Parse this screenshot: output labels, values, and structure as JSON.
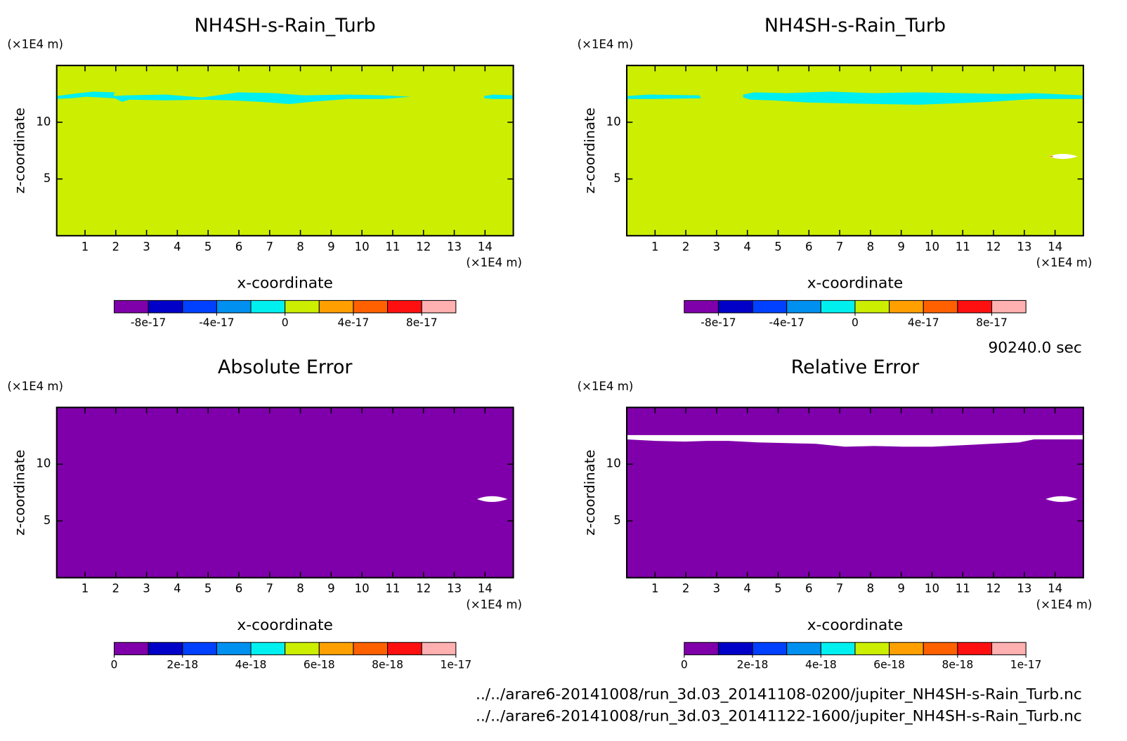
{
  "chart_data": [
    {
      "type": "contour",
      "title": "NH4SH-s-Rain_Turb",
      "x_label": "x-coordinate",
      "y_label": "z-coordinate",
      "x_unit": "(×1E4 m)",
      "y_unit": "(×1E4 m)",
      "xlim": [
        0.08,
        14.92
      ],
      "ylim": [
        0,
        15
      ],
      "xticks": [
        1,
        2,
        3,
        4,
        5,
        6,
        7,
        8,
        9,
        10,
        11,
        12,
        13,
        14
      ],
      "yticks": [
        5,
        10
      ],
      "field_color": "#ccee00",
      "colorbar": {
        "colors": [
          "#7f00aa",
          "#0000c8",
          "#0040ff",
          "#0090f0",
          "#00f0f0",
          "#ccee00",
          "#ffa000",
          "#ff6000",
          "#ff1010",
          "#ffb0b0"
        ],
        "lim": [
          -1e-16,
          1e-16
        ],
        "ticks": [
          -8e-17,
          -4e-17,
          0,
          4e-17,
          8e-17
        ]
      }
    },
    {
      "type": "contour",
      "title": "NH4SH-s-Rain_Turb",
      "x_label": "x-coordinate",
      "y_label": "z-coordinate",
      "x_unit": "(×1E4 m)",
      "y_unit": "(×1E4 m)",
      "xlim": [
        0.08,
        14.92
      ],
      "ylim": [
        0,
        15
      ],
      "xticks": [
        1,
        2,
        3,
        4,
        5,
        6,
        7,
        8,
        9,
        10,
        11,
        12,
        13,
        14
      ],
      "yticks": [
        5,
        10
      ],
      "field_color": "#ccee00",
      "colorbar": {
        "colors": [
          "#7f00aa",
          "#0000c8",
          "#0040ff",
          "#0090f0",
          "#00f0f0",
          "#ccee00",
          "#ffa000",
          "#ff6000",
          "#ff1010",
          "#ffb0b0"
        ],
        "lim": [
          -1e-16,
          1e-16
        ],
        "ticks": [
          -8e-17,
          -4e-17,
          0,
          4e-17,
          8e-17
        ]
      }
    },
    {
      "type": "contour",
      "title": "Absolute Error",
      "x_label": "x-coordinate",
      "y_label": "z-coordinate",
      "x_unit": "(×1E4 m)",
      "y_unit": "(×1E4 m)",
      "xlim": [
        0.08,
        14.92
      ],
      "ylim": [
        0,
        15
      ],
      "xticks": [
        1,
        2,
        3,
        4,
        5,
        6,
        7,
        8,
        9,
        10,
        11,
        12,
        13,
        14
      ],
      "yticks": [
        5,
        10
      ],
      "field_color": "#7f00aa",
      "colorbar": {
        "colors": [
          "#7f00aa",
          "#0000c8",
          "#0040ff",
          "#0090f0",
          "#00f0f0",
          "#ccee00",
          "#ffa000",
          "#ff6000",
          "#ff1010",
          "#ffb0b0"
        ],
        "lim": [
          0,
          1e-17
        ],
        "ticks": [
          0,
          2e-18,
          4e-18,
          6e-18,
          8e-18,
          1e-17
        ]
      }
    },
    {
      "type": "contour",
      "title": "Relative Error",
      "x_label": "x-coordinate",
      "y_label": "z-coordinate",
      "x_unit": "(×1E4 m)",
      "y_unit": "(×1E4 m)",
      "xlim": [
        0.08,
        14.92
      ],
      "ylim": [
        0,
        15
      ],
      "xticks": [
        1,
        2,
        3,
        4,
        5,
        6,
        7,
        8,
        9,
        10,
        11,
        12,
        13,
        14
      ],
      "yticks": [
        5,
        10
      ],
      "field_color": "#7f00aa",
      "colorbar": {
        "colors": [
          "#7f00aa",
          "#0000c8",
          "#0040ff",
          "#0090f0",
          "#00f0f0",
          "#ccee00",
          "#ffa000",
          "#ff6000",
          "#ff1010",
          "#ffb0b0"
        ],
        "lim": [
          0,
          1e-17
        ],
        "ticks": [
          0,
          2e-18,
          4e-18,
          6e-18,
          8e-18,
          1e-17
        ]
      }
    }
  ],
  "time": "90240.0 sec",
  "files": [
    "../../arare6-20141008/run_3d.03_20141108-0200/jupiter_NH4SH-s-Rain_Turb.nc",
    "../../arare6-20141008/run_3d.03_20141122-1600/jupiter_NH4SH-s-Rain_Turb.nc"
  ]
}
